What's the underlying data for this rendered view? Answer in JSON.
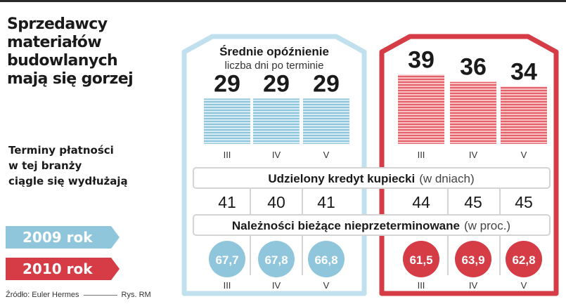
{
  "header": {
    "title": "Sprzedawcy\nmateriałów\nbudowlanych\nmają się gorzej",
    "subtitle": "Terminy płatności\nw tej branży\nciągle się wydłużają"
  },
  "legend": [
    {
      "label": "2009 rok",
      "color": "#8fc6dc"
    },
    {
      "label": "2010 rok",
      "color": "#d53c46"
    }
  ],
  "source": {
    "text": "Źródło: Euler Hermes",
    "credit": "Rys. RM"
  },
  "chart_data": {
    "type": "bar",
    "delay_section": {
      "title": "Średnie opóźnienie",
      "unit": "liczba dni po terminie"
    },
    "credit_section": {
      "title": "Udzielony kredyt kupiecki",
      "unit": "(w dniach)"
    },
    "receivables_section": {
      "title": "Należności bieżące nieprzeterminowane",
      "unit": "(w proc.)"
    },
    "years": [
      {
        "name": "2009 rok",
        "color": "#8fc6dc",
        "months": [
          "III",
          "IV",
          "V"
        ],
        "delay_days": [
          29,
          29,
          29
        ],
        "credit_days": [
          41,
          40,
          41
        ],
        "receivables_pct": [
          "67,7",
          "67,8",
          "66,8"
        ]
      },
      {
        "name": "2010 rok",
        "color": "#d53c46",
        "months": [
          "III",
          "IV",
          "V"
        ],
        "delay_days": [
          39,
          36,
          34
        ],
        "credit_days": [
          44,
          45,
          45
        ],
        "receivables_pct": [
          "61,5",
          "63,9",
          "62,8"
        ]
      }
    ]
  }
}
